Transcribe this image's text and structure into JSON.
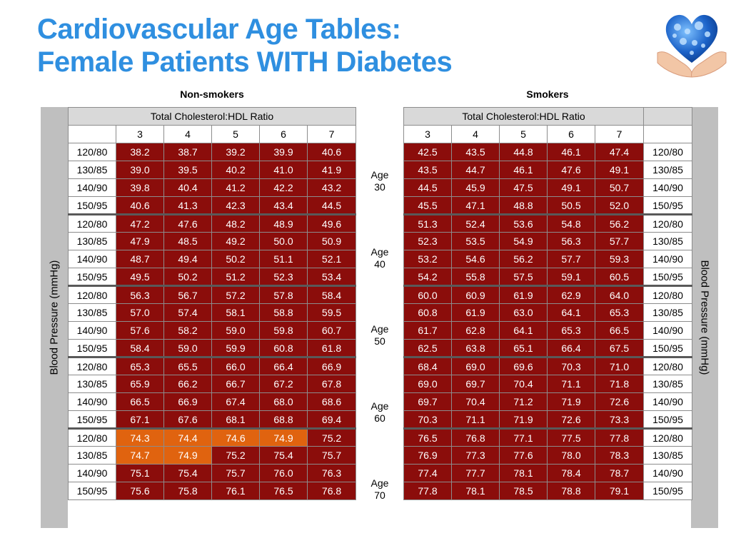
{
  "title_line1": "Cardiovascular Age Tables:",
  "title_line2": "Female Patients WITH Diabetes",
  "nonsmokers_label": "Non-smokers",
  "smokers_label": "Smokers",
  "ratio_header": "Total Cholesterol:HDL Ratio",
  "ratios": [
    "3",
    "4",
    "5",
    "6",
    "7"
  ],
  "bp_axis_label": "Blood Pressure (mmHg)",
  "bp_labels": [
    "120/80",
    "130/85",
    "140/90",
    "150/95"
  ],
  "colors": {
    "title": "#2f8fe0",
    "dark_red": "#8b0d0b",
    "orange": "#e0630f",
    "gray": "#bfbfbf",
    "header_gray": "#d9d9d9"
  },
  "groups": [
    {
      "age_word": "Age",
      "age_value": "30",
      "nonsmokers": [
        [
          "38.2",
          "38.7",
          "39.2",
          "39.9",
          "40.6"
        ],
        [
          "39.0",
          "39.5",
          "40.2",
          "41.0",
          "41.9"
        ],
        [
          "39.8",
          "40.4",
          "41.2",
          "42.2",
          "43.2"
        ],
        [
          "40.6",
          "41.3",
          "42.3",
          "43.4",
          "44.5"
        ]
      ],
      "smokers": [
        [
          "42.5",
          "43.5",
          "44.8",
          "46.1",
          "47.4"
        ],
        [
          "43.5",
          "44.7",
          "46.1",
          "47.6",
          "49.1"
        ],
        [
          "44.5",
          "45.9",
          "47.5",
          "49.1",
          "50.7"
        ],
        [
          "45.5",
          "47.1",
          "48.8",
          "50.5",
          "52.0"
        ]
      ]
    },
    {
      "age_word": "Age",
      "age_value": "40",
      "nonsmokers": [
        [
          "47.2",
          "47.6",
          "48.2",
          "48.9",
          "49.6"
        ],
        [
          "47.9",
          "48.5",
          "49.2",
          "50.0",
          "50.9"
        ],
        [
          "48.7",
          "49.4",
          "50.2",
          "51.1",
          "52.1"
        ],
        [
          "49.5",
          "50.2",
          "51.2",
          "52.3",
          "53.4"
        ]
      ],
      "smokers": [
        [
          "51.3",
          "52.4",
          "53.6",
          "54.8",
          "56.2"
        ],
        [
          "52.3",
          "53.5",
          "54.9",
          "56.3",
          "57.7"
        ],
        [
          "53.2",
          "54.6",
          "56.2",
          "57.7",
          "59.3"
        ],
        [
          "54.2",
          "55.8",
          "57.5",
          "59.1",
          "60.5"
        ]
      ]
    },
    {
      "age_word": "Age",
      "age_value": "50",
      "nonsmokers": [
        [
          "56.3",
          "56.7",
          "57.2",
          "57.8",
          "58.4"
        ],
        [
          "57.0",
          "57.4",
          "58.1",
          "58.8",
          "59.5"
        ],
        [
          "57.6",
          "58.2",
          "59.0",
          "59.8",
          "60.7"
        ],
        [
          "58.4",
          "59.0",
          "59.9",
          "60.8",
          "61.8"
        ]
      ],
      "smokers": [
        [
          "60.0",
          "60.9",
          "61.9",
          "62.9",
          "64.0"
        ],
        [
          "60.8",
          "61.9",
          "63.0",
          "64.1",
          "65.3"
        ],
        [
          "61.7",
          "62.8",
          "64.1",
          "65.3",
          "66.5"
        ],
        [
          "62.5",
          "63.8",
          "65.1",
          "66.4",
          "67.5"
        ]
      ]
    },
    {
      "age_word": "Age",
      "age_value": "60",
      "nonsmokers": [
        [
          "65.3",
          "65.5",
          "66.0",
          "66.4",
          "66.9"
        ],
        [
          "65.9",
          "66.2",
          "66.7",
          "67.2",
          "67.8"
        ],
        [
          "66.5",
          "66.9",
          "67.4",
          "68.0",
          "68.6"
        ],
        [
          "67.1",
          "67.6",
          "68.1",
          "68.8",
          "69.4"
        ]
      ],
      "smokers": [
        [
          "68.4",
          "69.0",
          "69.6",
          "70.3",
          "71.0"
        ],
        [
          "69.0",
          "69.7",
          "70.4",
          "71.1",
          "71.8"
        ],
        [
          "69.7",
          "70.4",
          "71.2",
          "71.9",
          "72.6"
        ],
        [
          "70.3",
          "71.1",
          "71.9",
          "72.6",
          "73.3"
        ]
      ]
    },
    {
      "age_word": "Age",
      "age_value": "70",
      "nonsmokers": [
        [
          "74.3",
          "74.4",
          "74.6",
          "74.9",
          "75.2"
        ],
        [
          "74.7",
          "74.9",
          "75.2",
          "75.4",
          "75.7"
        ],
        [
          "75.1",
          "75.4",
          "75.7",
          "76.0",
          "76.3"
        ],
        [
          "75.6",
          "75.8",
          "76.1",
          "76.5",
          "76.8"
        ]
      ],
      "smokers": [
        [
          "76.5",
          "76.8",
          "77.1",
          "77.5",
          "77.8"
        ],
        [
          "76.9",
          "77.3",
          "77.6",
          "78.0",
          "78.3"
        ],
        [
          "77.4",
          "77.7",
          "78.1",
          "78.4",
          "78.7"
        ],
        [
          "77.8",
          "78.1",
          "78.5",
          "78.8",
          "79.1"
        ]
      ]
    }
  ],
  "cell_styles": {
    "nonsmokers": [
      [
        "dark",
        "dark",
        "dark",
        "dark",
        "dark"
      ],
      [
        "dark",
        "dark",
        "dark",
        "dark",
        "dark"
      ],
      [
        "dark",
        "dark",
        "dark",
        "dark",
        "dark"
      ],
      [
        "dark",
        "dark",
        "dark",
        "dark",
        "dark"
      ],
      [
        "dark",
        "dark",
        "dark",
        "dark",
        "dark"
      ],
      [
        "dark",
        "dark",
        "dark",
        "dark",
        "dark"
      ],
      [
        "dark",
        "dark",
        "dark",
        "dark",
        "dark"
      ],
      [
        "dark",
        "dark",
        "dark",
        "dark",
        "dark"
      ],
      [
        "dark",
        "dark",
        "dark",
        "dark",
        "dark"
      ],
      [
        "dark",
        "dark",
        "dark",
        "dark",
        "dark"
      ],
      [
        "dark",
        "dark",
        "dark",
        "dark",
        "dark"
      ],
      [
        "dark",
        "dark",
        "dark",
        "dark",
        "dark"
      ],
      [
        "dark",
        "dark",
        "dark",
        "dark",
        "dark"
      ],
      [
        "dark",
        "dark",
        "dark",
        "dark",
        "dark"
      ],
      [
        "dark",
        "dark",
        "dark",
        "dark",
        "dark"
      ],
      [
        "dark",
        "dark",
        "dark",
        "dark",
        "dark"
      ],
      [
        "orange",
        "orange",
        "orange",
        "orange",
        "dark"
      ],
      [
        "orange",
        "orange",
        "dark",
        "dark",
        "dark"
      ],
      [
        "dark",
        "dark",
        "dark",
        "dark",
        "dark"
      ],
      [
        "dark",
        "dark",
        "dark",
        "dark",
        "dark"
      ]
    ]
  }
}
